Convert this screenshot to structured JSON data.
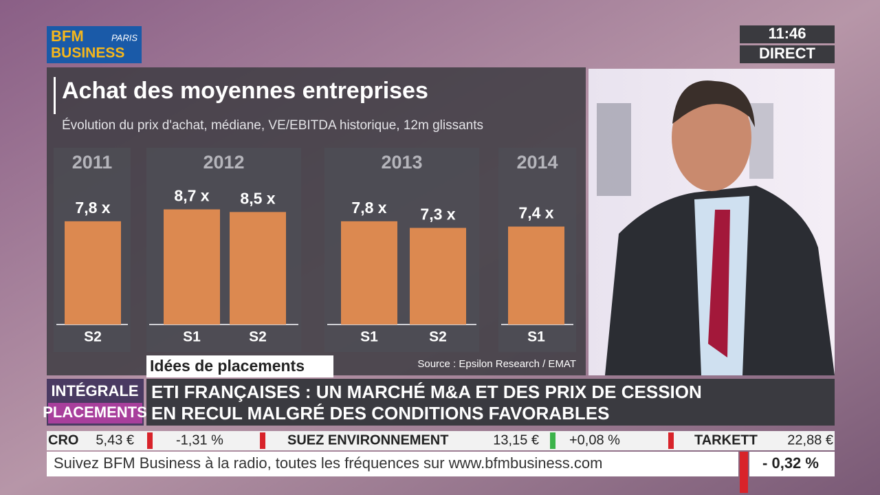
{
  "header": {
    "logo_top": "BFM",
    "logo_paris": "PARIS",
    "logo_bottom": "BUSINESS",
    "time": "11:46",
    "live": "DIRECT"
  },
  "chart_data": {
    "type": "bar",
    "title": "Achat des moyennes entreprises",
    "subtitle": "Évolution du prix d'achat, médiane, VE/EBITDA historique, 12m glissants",
    "groups": [
      "2011",
      "2012",
      "2013",
      "2014"
    ],
    "categories": [
      "S2",
      "S1",
      "S2",
      "S1",
      "S2",
      "S1"
    ],
    "values": [
      7.8,
      8.7,
      8.5,
      7.8,
      7.3,
      7.4
    ],
    "value_labels": [
      "7,8 x",
      "8,7 x",
      "8,5 x",
      "7,8 x",
      "7,3 x",
      "7,4 x"
    ],
    "color": "#dc8950",
    "source": "Source : Epsilon Research / EMAT"
  },
  "lower_third": {
    "tag": "Idées de placements",
    "show_top": "INTÉGRALE",
    "show_bottom": "PLACEMENTS",
    "headline": [
      "ETI FRANÇAISES : UN MARCHÉ M&A ET DES PRIX DE CESSION",
      "EN RECUL MALGRÉ DES CONDITIONS FAVORABLES"
    ]
  },
  "ticker": {
    "stocks": [
      {
        "name": "CRO",
        "price": "5,43 €",
        "change": "-1,31 %"
      },
      {
        "name": "SUEZ ENVIRONNEMENT",
        "price": "13,15 €",
        "change": "+0,08 %"
      },
      {
        "name": "TARKETT",
        "price": "22,88 €"
      }
    ],
    "crawl": "Suivez BFM Business à la radio, toutes les fréquences sur www.bfmbusiness.com",
    "index_change": "- 0,32 %"
  }
}
